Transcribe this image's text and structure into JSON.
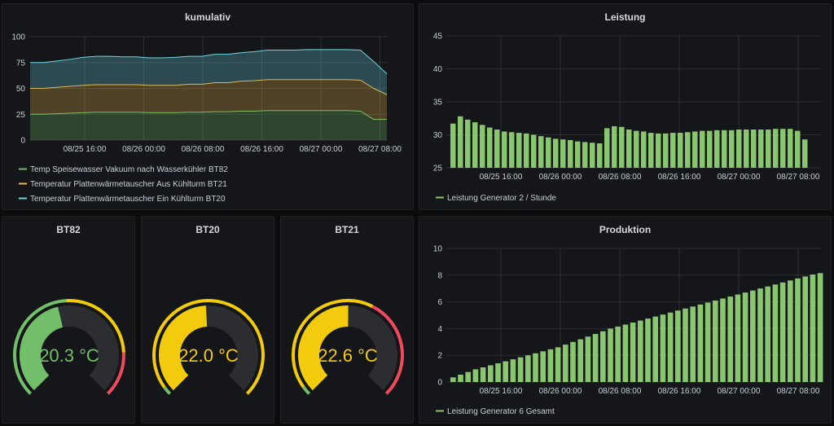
{
  "colors": {
    "green": "#73bf69",
    "yellow": "#fade2a",
    "orange": "#f2cc0c",
    "red": "#f2495c",
    "teal": "#6fd5e4",
    "bar_green": "#8ac56f"
  },
  "panels": {
    "kumulativ": {
      "title": "kumulativ",
      "legend": [
        "Temp Speisewasser Vakuum nach Wasserkühler BT82",
        "Temperatur Plattenwärmetauscher Aus Kühlturm BT21",
        "Temperatur Plattenwärmetauscher Ein Kühlturm BT20"
      ]
    },
    "leistung": {
      "title": "Leistung",
      "legend": [
        "Leistung Generator 2 / Stunde"
      ]
    },
    "produktion": {
      "title": "Produktion",
      "legend": [
        "Leistung Generator 6 Gesamt"
      ]
    },
    "bt82": {
      "title": "BT82",
      "value": "20.3 °C",
      "raw": 20.3
    },
    "bt20": {
      "title": "BT20",
      "value": "22.0 °C",
      "raw": 22.0
    },
    "bt21": {
      "title": "BT21",
      "value": "22.6 °C",
      "raw": 22.6
    }
  },
  "chart_data": [
    {
      "type": "area",
      "title": "kumulativ",
      "stacked": true,
      "x_ticks": [
        "08/25 16:00",
        "08/26 00:00",
        "08/26 08:00",
        "08/26 16:00",
        "08/27 00:00",
        "08/27 08:00"
      ],
      "y_ticks": [
        0,
        25,
        50,
        75,
        100
      ],
      "ylim": [
        0,
        100
      ],
      "series": [
        {
          "name": "Temp Speisewasser Vakuum nach Wasserkühler BT82",
          "color": "#73bf69",
          "values": [
            25,
            25,
            25.5,
            26,
            26.5,
            27,
            27,
            27,
            27,
            26.5,
            26.5,
            26.5,
            27,
            27,
            27.5,
            27.5,
            28,
            28,
            28.5,
            28.5,
            28.5,
            28.5,
            28.5,
            28.5,
            28.5,
            28,
            20,
            20
          ]
        },
        {
          "name": "Temperatur Plattenwärmetauscher Aus Kühlturm BT21",
          "color": "#e8b64c",
          "values": [
            25,
            25,
            25.5,
            26,
            26.5,
            26.5,
            26.5,
            26.5,
            26.5,
            26.5,
            26.5,
            26.5,
            27,
            27,
            28,
            28,
            29,
            29.5,
            30,
            30,
            30,
            30,
            30,
            30,
            30,
            30,
            30,
            24
          ]
        },
        {
          "name": "Temperatur Plattenwärmetauscher Ein Kühlturm BT20",
          "color": "#6fd5e4",
          "values": [
            25,
            25,
            25.5,
            26,
            27,
            27.5,
            27.5,
            27,
            27,
            26.5,
            26.5,
            27,
            27,
            27,
            27.5,
            27.5,
            27.5,
            28,
            28.5,
            28.5,
            28.5,
            29,
            29,
            29,
            29,
            29,
            26,
            20
          ]
        }
      ]
    },
    {
      "type": "bar",
      "title": "Leistung",
      "x_ticks": [
        "08/25 16:00",
        "08/26 00:00",
        "08/26 08:00",
        "08/26 16:00",
        "08/27 00:00",
        "08/27 08:00"
      ],
      "y_ticks": [
        25,
        30,
        35,
        40,
        45
      ],
      "ylim": [
        25,
        45
      ],
      "series": [
        {
          "name": "Leistung Generator 2 / Stunde",
          "color": "#8ac56f",
          "values": [
            31.7,
            32.8,
            32.3,
            31.9,
            31.5,
            31.1,
            30.8,
            30.5,
            30.4,
            30.3,
            30.2,
            30.0,
            29.8,
            29.6,
            29.4,
            29.3,
            29.2,
            29.0,
            28.9,
            28.8,
            28.7,
            31.0,
            31.3,
            31.2,
            30.8,
            30.6,
            30.5,
            30.3,
            30.2,
            30.2,
            30.3,
            30.3,
            30.4,
            30.5,
            30.6,
            30.6,
            30.7,
            30.7,
            30.7,
            30.8,
            30.8,
            30.8,
            30.8,
            30.8,
            30.9,
            30.9,
            30.9,
            30.6,
            29.3
          ]
        }
      ]
    },
    {
      "type": "bar",
      "title": "Produktion",
      "x_ticks": [
        "08/25 16:00",
        "08/26 00:00",
        "08/26 08:00",
        "08/26 16:00",
        "08/27 00:00",
        "08/27 08:00"
      ],
      "y_ticks": [
        0,
        2,
        4,
        6,
        8,
        10
      ],
      "ylim": [
        0,
        10
      ],
      "series": [
        {
          "name": "Leistung Generator 6 Gesamt",
          "color": "#8ac56f",
          "values": [
            0.35,
            0.55,
            0.75,
            0.95,
            1.1,
            1.25,
            1.4,
            1.55,
            1.7,
            1.85,
            2.0,
            2.15,
            2.3,
            2.45,
            2.6,
            2.8,
            3.0,
            3.2,
            3.4,
            3.6,
            3.8,
            4.0,
            4.15,
            4.3,
            4.45,
            4.6,
            4.75,
            4.9,
            5.05,
            5.2,
            5.35,
            5.5,
            5.65,
            5.8,
            5.95,
            6.1,
            6.25,
            6.4,
            6.55,
            6.7,
            6.85,
            7.0,
            7.15,
            7.3,
            7.45,
            7.6,
            7.75,
            7.9,
            8.05,
            8.15
          ]
        }
      ]
    },
    {
      "type": "gauge",
      "title": "BT82",
      "value": 20.3,
      "min": 0,
      "max": 45,
      "thresholds": [
        {
          "from": 0,
          "to": 22,
          "color": "#73bf69"
        },
        {
          "from": 22,
          "to": 37,
          "color": "#f2cc0c"
        },
        {
          "from": 37,
          "to": 45,
          "color": "#f2495c"
        }
      ]
    },
    {
      "type": "gauge",
      "title": "BT20",
      "value": 22.0,
      "min": 0,
      "max": 45,
      "thresholds": [
        {
          "from": 0,
          "to": 1.5,
          "color": "#73bf69"
        },
        {
          "from": 1.5,
          "to": 45,
          "color": "#f2cc0c"
        }
      ]
    },
    {
      "type": "gauge",
      "title": "BT21",
      "value": 22.6,
      "min": 0,
      "max": 45,
      "thresholds": [
        {
          "from": 0,
          "to": 1.5,
          "color": "#73bf69"
        },
        {
          "from": 1.5,
          "to": 27,
          "color": "#f2cc0c"
        },
        {
          "from": 27,
          "to": 45,
          "color": "#f2495c"
        }
      ]
    }
  ]
}
